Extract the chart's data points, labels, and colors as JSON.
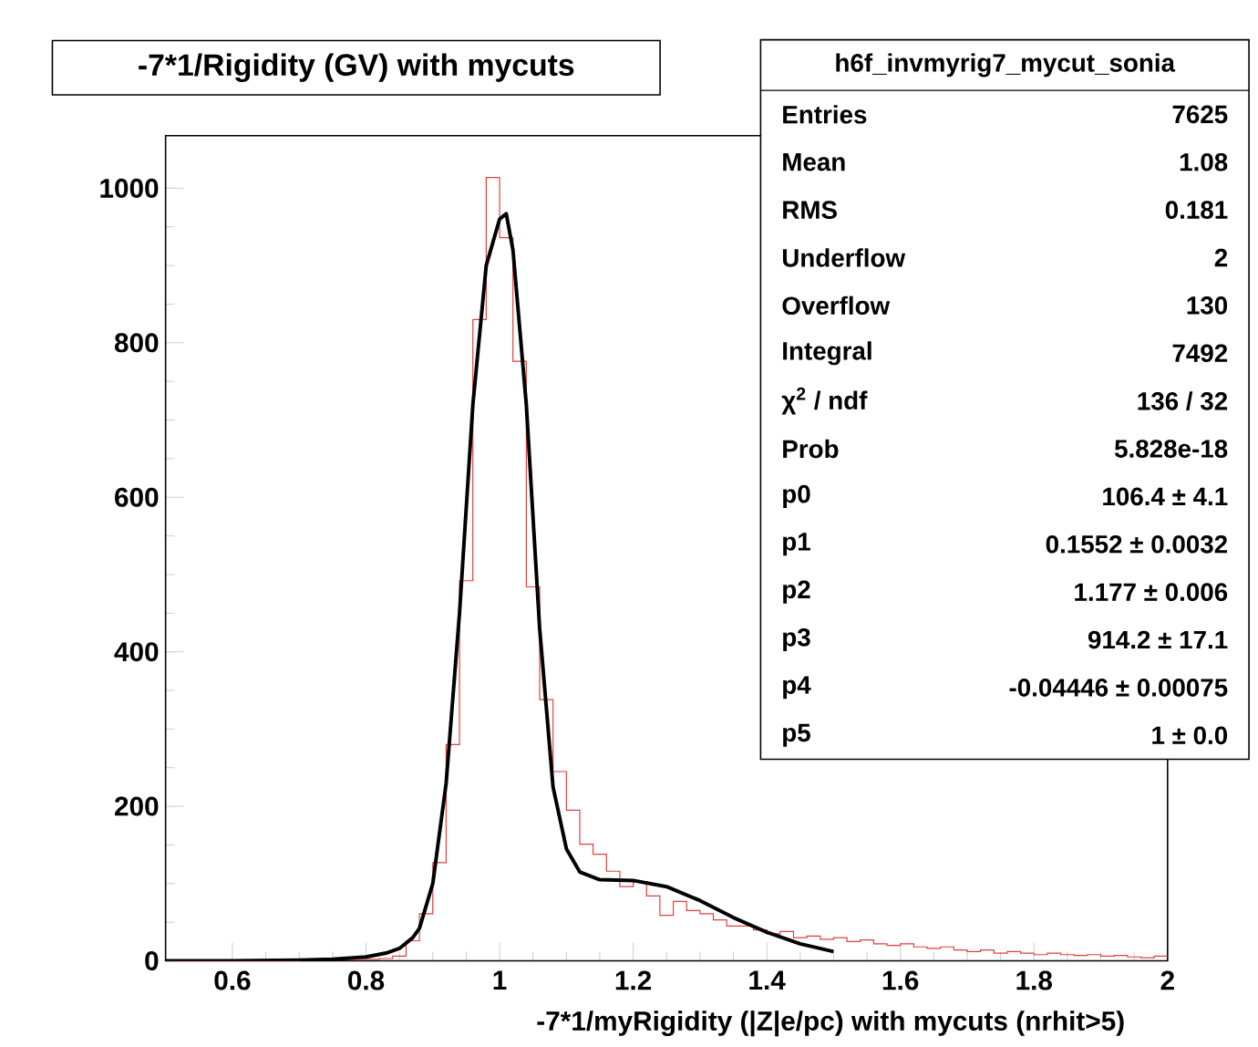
{
  "chart_data": {
    "type": "histogram",
    "title": "-7*1/Rigidity (GV) with mycuts",
    "xlabel": "-7*1/myRigidity (|Z|e/pc) with mycuts (nrhit>5)",
    "color": "#e0403f",
    "bins": [
      0.5,
      0.52,
      0.54,
      0.56,
      0.58,
      0.6,
      0.62,
      0.64,
      0.66,
      0.68,
      0.7,
      0.72,
      0.74,
      0.76,
      0.78,
      0.8,
      0.82,
      0.84,
      0.86,
      0.88,
      0.9,
      0.92,
      0.94,
      0.96,
      0.98,
      1.0,
      1.02,
      1.04,
      1.06,
      1.08,
      1.1,
      1.12,
      1.14,
      1.16,
      1.18,
      1.2,
      1.22,
      1.24,
      1.26,
      1.28,
      1.3,
      1.32,
      1.34,
      1.36,
      1.38,
      1.4,
      1.42,
      1.44,
      1.46,
      1.48,
      1.5,
      1.52,
      1.54,
      1.56,
      1.58,
      1.6,
      1.62,
      1.64,
      1.66,
      1.68,
      1.7,
      1.72,
      1.74,
      1.76,
      1.78,
      1.8,
      1.82,
      1.84,
      1.86,
      1.88,
      1.9,
      1.92,
      1.94,
      1.96,
      1.98,
      2.0
    ],
    "values": [
      0,
      0,
      0,
      0,
      0,
      0,
      0,
      0,
      0,
      0,
      1,
      1,
      1,
      1,
      2,
      2,
      3,
      6,
      26,
      61,
      127,
      280,
      492,
      830,
      1014,
      936,
      776,
      484,
      338,
      245,
      195,
      151,
      138,
      116,
      96,
      102,
      84,
      59,
      77,
      65,
      61,
      53,
      45,
      45,
      40,
      35,
      38,
      30,
      32,
      28,
      30,
      25,
      27,
      22,
      20,
      22,
      18,
      16,
      18,
      14,
      12,
      14,
      10,
      12,
      10,
      8,
      10,
      8,
      7,
      8,
      6,
      7,
      5,
      4,
      6
    ],
    "series": [
      {
        "type": "line",
        "color": "#000000",
        "x": [
          0.5,
          0.6,
          0.7,
          0.75,
          0.8,
          0.83,
          0.85,
          0.87,
          0.88,
          0.9,
          0.92,
          0.94,
          0.96,
          0.98,
          1.0,
          1.01,
          1.02,
          1.04,
          1.06,
          1.08,
          1.1,
          1.12,
          1.15,
          1.2,
          1.25,
          1.3,
          1.35,
          1.4,
          1.45,
          1.5
        ],
        "values": [
          0,
          0,
          1,
          2,
          5,
          10,
          16,
          30,
          42,
          100,
          230,
          450,
          720,
          900,
          960,
          967,
          920,
          720,
          430,
          225,
          145,
          115,
          105,
          104,
          96,
          78,
          56,
          37,
          22,
          12
        ]
      }
    ],
    "xlim": [
      0.5,
      2.0
    ],
    "ylim": [
      0,
      1068
    ],
    "xticks": [
      0.6,
      0.8,
      1,
      1.2,
      1.4,
      1.6,
      1.8,
      2
    ],
    "yticks": [
      0,
      200,
      400,
      600,
      800,
      1000
    ],
    "grid": false,
    "annotations": [
      "h6f_invmyrig7_mycut_sonia",
      "Entries",
      "7625",
      "Mean",
      "1.08",
      "RMS",
      "0.181",
      "Underflow",
      "2",
      "Overflow",
      "130",
      "Integral",
      "7492",
      "χ$^{2}$ / ndf",
      "136 / 32",
      "Prob",
      "5.828e-18",
      "p0",
      "106.4 ± 4.1",
      "p1",
      "0.1552 ± 0.0032",
      "p2",
      "1.177 ± 0.006",
      "p3",
      "914.2 ± 17.1",
      "p4",
      "-0.04446 ± 0.00075",
      "p5",
      "1 ± 0.0"
    ]
  }
}
